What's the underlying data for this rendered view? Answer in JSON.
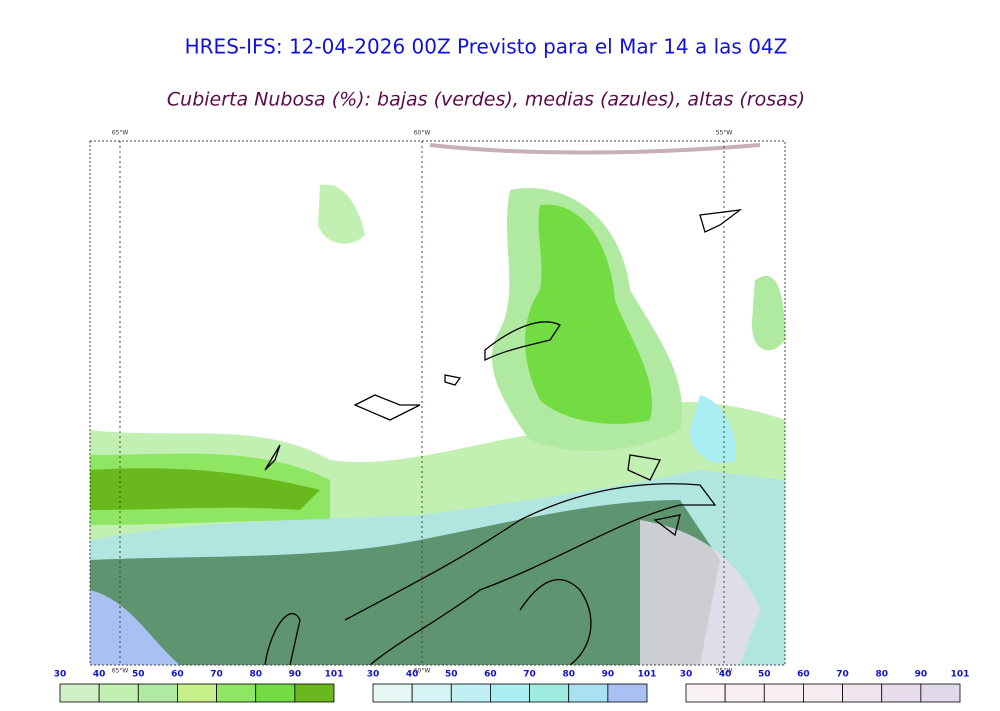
{
  "header": {
    "title": "HRES-IFS: 12-04-2026 00Z Previsto para el Mar 14 a las 04Z",
    "subtitle": "Cubierta Nubosa (%): bajas (verdes), medias (azules), altas (rosas)"
  },
  "map": {
    "lon_labels": [
      "65°W",
      "60°W",
      "55°W"
    ]
  },
  "colorbars": [
    {
      "name": "bajas",
      "labels": [
        30,
        40,
        50,
        60,
        70,
        80,
        90,
        101
      ],
      "colors": [
        "#d2f0c8",
        "#c2efb2",
        "#b0eaa0",
        "#c8f08a",
        "#8ee662",
        "#72dc42",
        "#68b81e"
      ]
    },
    {
      "name": "medias",
      "labels": [
        30,
        40,
        50,
        60,
        70,
        80,
        90,
        101
      ],
      "colors": [
        "#e6f8f6",
        "#d6f4f6",
        "#c0f0f4",
        "#a8eef2",
        "#a0ece2",
        "#a8e2f2",
        "#a8c0f2"
      ]
    },
    {
      "name": "altas",
      "labels": [
        30,
        40,
        50,
        60,
        70,
        80,
        90,
        101
      ],
      "colors": [
        "#faf2f2",
        "#f8f0f0",
        "#f8edf0",
        "#f6ebf0",
        "#f0e4ee",
        "#e8dcec",
        "#e2d8ec"
      ]
    }
  ]
}
